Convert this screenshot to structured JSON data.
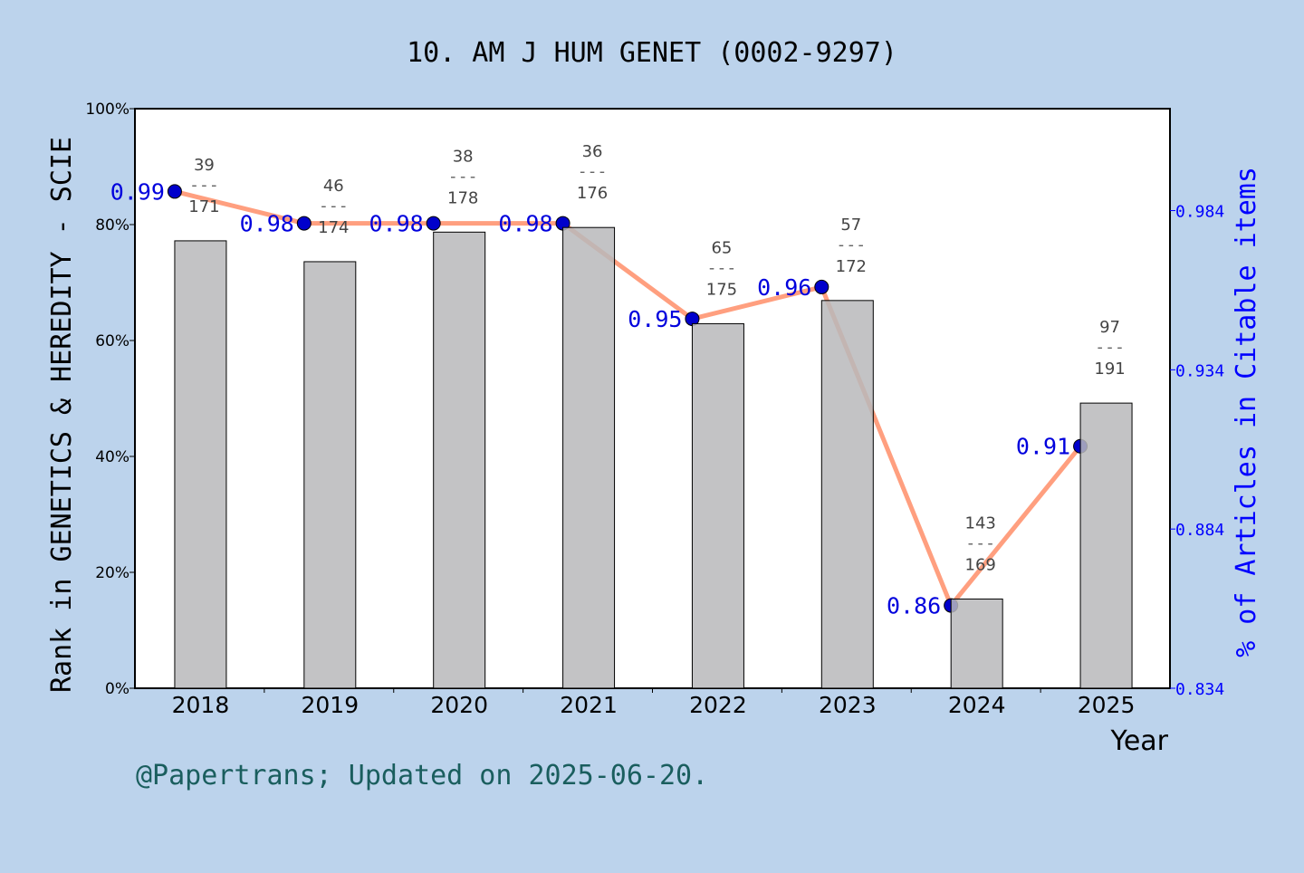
{
  "chart_data": {
    "type": "bar",
    "title": "10. AM J HUM GENET (0002-9297)",
    "xlabel": "Year",
    "ylabel": "Rank in GENETICS & HEREDITY - SCIE",
    "y2label": "% of Articles in Citable items",
    "footer": "@Papertrans; Updated on 2025-06-20.",
    "categories": [
      "2018",
      "2019",
      "2020",
      "2021",
      "2022",
      "2023",
      "2024",
      "2025"
    ],
    "ylim": [
      0,
      100
    ],
    "yticks": [
      "0%",
      "20%",
      "40%",
      "60%",
      "80%",
      "100%"
    ],
    "y2lim": [
      0.834,
      1.016
    ],
    "y2ticks": [
      "0.834",
      "0.884",
      "0.934",
      "0.984"
    ],
    "bars": {
      "rank": [
        39,
        46,
        38,
        36,
        65,
        57,
        143,
        97
      ],
      "total": [
        171,
        174,
        178,
        176,
        175,
        172,
        169,
        191
      ],
      "values_percent": [
        77.2,
        73.6,
        78.7,
        79.5,
        62.9,
        66.9,
        15.4,
        49.2
      ],
      "color": "#b8b9bb"
    },
    "line": {
      "values": [
        0.99,
        0.98,
        0.98,
        0.98,
        0.95,
        0.96,
        0.86,
        0.91
      ],
      "labels": [
        "0.99",
        "0.98",
        "0.98",
        "0.98",
        "0.95",
        "0.96",
        "0.86",
        "0.91"
      ],
      "color": "#ff9f7f",
      "marker_color": "#0000cc"
    },
    "colors": {
      "background": "#bcd3ec",
      "axis2": "#0000ff",
      "footer": "#1a5e5e"
    }
  }
}
